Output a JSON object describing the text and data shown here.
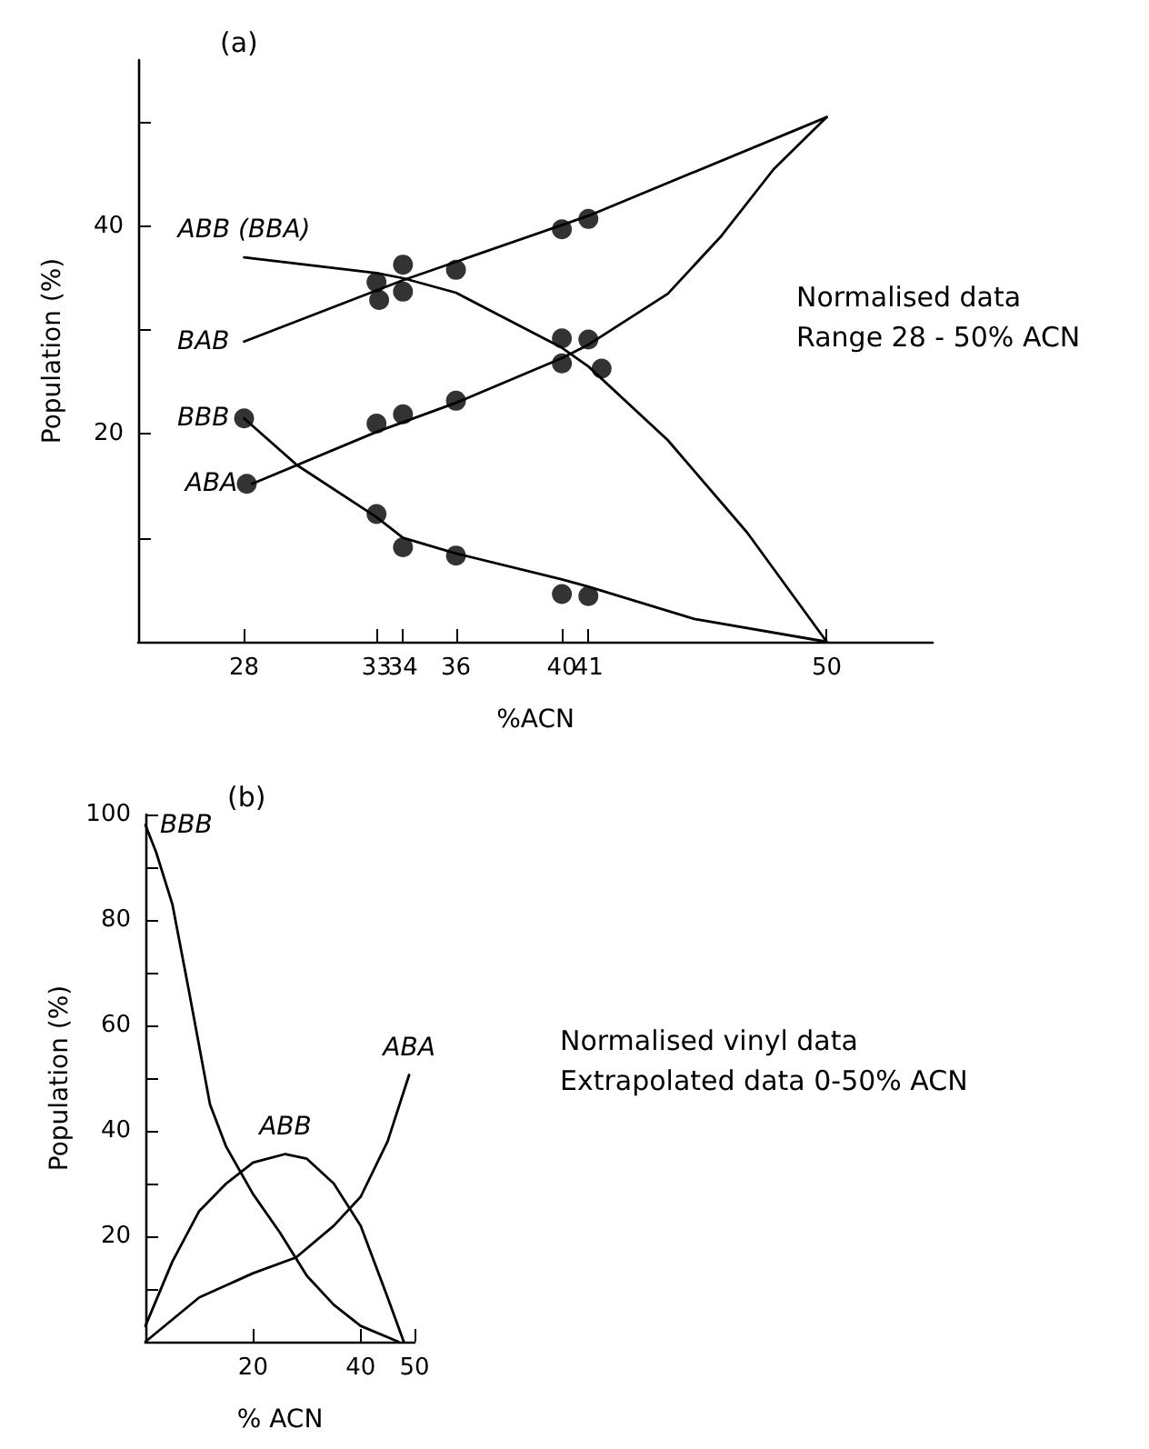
{
  "chart_data": [
    {
      "type": "line",
      "title": "(a)",
      "xlabel": "%ACN",
      "ylabel": "Population (%)",
      "annotations": [
        "Normalised data",
        "Range 28 - 50% ACN"
      ],
      "xlim": [
        24,
        54
      ],
      "ylim": [
        0,
        56
      ],
      "xticks": [
        28,
        33,
        34,
        36,
        40,
        41,
        50
      ],
      "yticks": [
        {
          "value": 10,
          "label": null
        },
        20,
        {
          "value": 30,
          "label": null
        },
        40,
        {
          "value": 50,
          "label": null
        }
      ],
      "grid": false,
      "legend": false,
      "series": [
        {
          "name": "ABB (BBA)",
          "color": "#000000",
          "marker": "none",
          "x": [
            28,
            33,
            34,
            36,
            40,
            41,
            44,
            47,
            50
          ],
          "values": [
            37.0,
            35.5,
            35.0,
            33.6,
            28.3,
            26.5,
            19.4,
            10.5,
            0
          ]
        },
        {
          "name": "BAB",
          "color": "#000000",
          "marker": "none",
          "x": [
            28,
            34,
            41,
            50
          ],
          "values": [
            28.9,
            34.8,
            41.0,
            50.5
          ]
        },
        {
          "name": "BBB",
          "color": "#000000",
          "marker": "none",
          "x": [
            28,
            30,
            33,
            34,
            36,
            40,
            41,
            45,
            50
          ],
          "values": [
            21.5,
            17.0,
            12.0,
            10.0,
            8.5,
            6.0,
            5.3,
            2.2,
            0
          ]
        },
        {
          "name": "ABA",
          "color": "#000000",
          "marker": "none",
          "x": [
            28.3,
            33,
            36,
            40,
            41,
            44,
            46,
            48,
            50
          ],
          "values": [
            15.2,
            20.2,
            23.0,
            27.3,
            28.6,
            33.5,
            39.0,
            45.5,
            50.5
          ]
        },
        {
          "type": "scatter",
          "color": "#000000",
          "marker": "circle",
          "x": [
            33,
            34,
            40,
            41.5
          ],
          "values": [
            34.6,
            33.7,
            29.2,
            26.3
          ]
        },
        {
          "type": "scatter",
          "color": "#000000",
          "marker": "circle",
          "x": [
            33.1,
            34,
            36,
            40,
            41
          ],
          "values": [
            32.9,
            36.3,
            35.8,
            39.7,
            40.7
          ]
        },
        {
          "type": "scatter",
          "color": "#000000",
          "marker": "circle",
          "x": [
            28,
            33,
            34,
            36,
            40,
            41
          ],
          "values": [
            21.5,
            12.3,
            9.1,
            8.3,
            4.6,
            4.4
          ]
        },
        {
          "type": "scatter",
          "color": "#000000",
          "marker": "circle",
          "x": [
            28.1,
            33,
            34,
            36,
            40,
            41
          ],
          "values": [
            15.2,
            21.0,
            21.9,
            23.2,
            26.8,
            29.1
          ]
        }
      ]
    },
    {
      "type": "line",
      "title": "(b)",
      "xlabel": "% ACN",
      "ylabel": "Population (%)",
      "annotations": [
        "Normalised vinyl data",
        "Extrapolated data 0-50% ACN"
      ],
      "xlim": [
        0,
        50
      ],
      "ylim": [
        0,
        100
      ],
      "xticks": [
        20,
        40,
        50
      ],
      "yticks": [
        {
          "value": 10,
          "label": null
        },
        20,
        {
          "value": 30,
          "label": null
        },
        40,
        {
          "value": 50,
          "label": null
        },
        60,
        {
          "value": 70,
          "label": null
        },
        80,
        {
          "value": 90,
          "label": null
        },
        100
      ],
      "grid": false,
      "legend": false,
      "series": [
        {
          "name": "BBB",
          "color": "#000000",
          "marker": "none",
          "x": [
            0,
            2,
            5,
            8,
            12,
            15,
            20,
            25,
            30,
            35,
            40,
            47
          ],
          "values": [
            98,
            92.8,
            83,
            67,
            45,
            37,
            28,
            20.7,
            12.5,
            7,
            3,
            0
          ]
        },
        {
          "name": "ABB",
          "color": "#000000",
          "marker": "none",
          "x": [
            0,
            5,
            10,
            15,
            20,
            26,
            30,
            35,
            40,
            45,
            48
          ],
          "values": [
            3,
            15.2,
            24.8,
            30,
            34,
            35.6,
            34.7,
            30,
            22,
            8.4,
            0
          ]
        },
        {
          "name": "ABA",
          "color": "#000000",
          "marker": "none",
          "x": [
            0,
            10,
            20,
            28,
            35,
            40,
            45,
            49
          ],
          "values": [
            0,
            8.4,
            13,
            16,
            22,
            27.5,
            38,
            50.6
          ]
        }
      ]
    }
  ]
}
